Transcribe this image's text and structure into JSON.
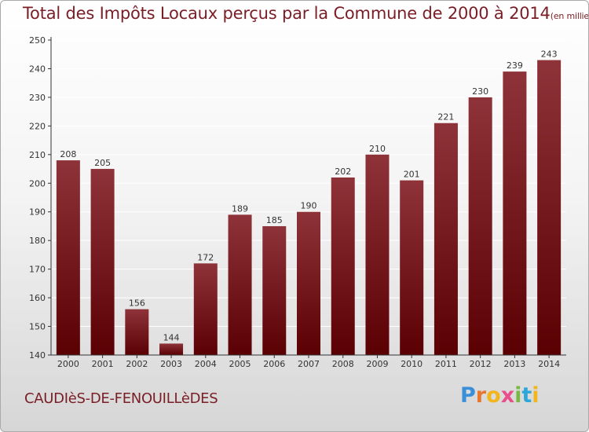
{
  "title": {
    "main": "Total des Impôts Locaux perçus par la Commune de 2000 à 2014",
    "unit": "(en milliers d'€)"
  },
  "commune": "CAUDIèS-DE-FENOUILLèDES",
  "logo": {
    "text": "Proxiti",
    "letter_colors": [
      "#3a8fd8",
      "#e8772e",
      "#f2b51c",
      "#ea4d8b",
      "#7ab845",
      "#2fa6d8",
      "#f2b51c"
    ]
  },
  "colors": {
    "bar_top": "#8e3339",
    "bar_bottom": "#5a0003",
    "title": "#7a1e26",
    "axis": "#333333",
    "grid": "#ffffff"
  },
  "chart_data": {
    "type": "bar",
    "categories": [
      "2000",
      "2001",
      "2002",
      "2003",
      "2004",
      "2005",
      "2006",
      "2007",
      "2008",
      "2009",
      "2010",
      "2011",
      "2012",
      "2013",
      "2014"
    ],
    "values": [
      208,
      205,
      156,
      144,
      172,
      189,
      185,
      190,
      202,
      210,
      201,
      221,
      230,
      239,
      243
    ],
    "ylim": [
      140,
      250
    ],
    "yticks": [
      140,
      150,
      160,
      170,
      180,
      190,
      200,
      210,
      220,
      230,
      240,
      250
    ],
    "grid": true
  }
}
